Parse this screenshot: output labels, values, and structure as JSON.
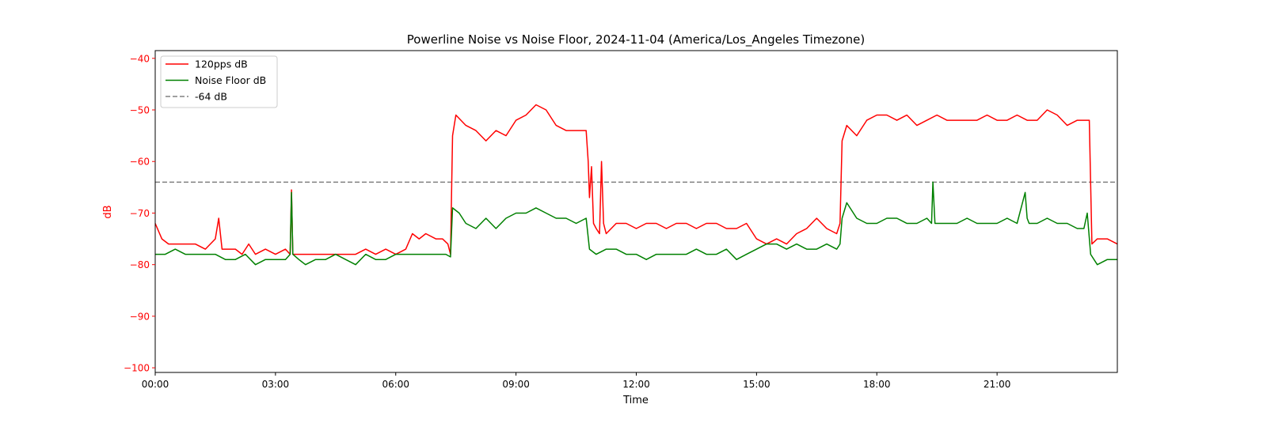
{
  "chart_data": {
    "type": "line",
    "title": "Powerline Noise vs Noise Floor, 2024-11-04 (America/Los_Angeles Timezone)",
    "xlabel": "Time",
    "ylabel": "dB",
    "xlim": [
      "00:00",
      "24:00"
    ],
    "ylim": [
      -100.9,
      -38.5
    ],
    "xticks": [
      "00:00",
      "03:00",
      "06:00",
      "09:00",
      "12:00",
      "15:00",
      "18:00",
      "21:00"
    ],
    "yticks": [
      -100,
      -90,
      -80,
      -70,
      -60,
      -50,
      -40
    ],
    "ytick_color": "#ff0000",
    "ylabel_color": "#ff0000",
    "grid": false,
    "legend_position": "top-left",
    "reference_line": {
      "name": "-64 dB",
      "y": -64,
      "color": "#808080",
      "style": "dashed"
    },
    "series": [
      {
        "name": "120pps dB",
        "color": "#ff0000",
        "x": [
          "00:00",
          "00:10",
          "00:20",
          "00:30",
          "00:45",
          "01:00",
          "01:15",
          "01:30",
          "01:35",
          "01:40",
          "01:50",
          "02:00",
          "02:10",
          "02:20",
          "02:30",
          "02:45",
          "03:00",
          "03:15",
          "03:22",
          "03:24",
          "03:26",
          "03:35",
          "03:45",
          "04:00",
          "04:15",
          "04:30",
          "04:45",
          "05:00",
          "05:15",
          "05:30",
          "05:45",
          "06:00",
          "06:15",
          "06:25",
          "06:35",
          "06:45",
          "07:00",
          "07:10",
          "07:18",
          "07:22",
          "07:25",
          "07:30",
          "07:45",
          "08:00",
          "08:15",
          "08:30",
          "08:45",
          "09:00",
          "09:15",
          "09:30",
          "09:45",
          "10:00",
          "10:15",
          "10:30",
          "10:45",
          "10:48",
          "10:50",
          "10:53",
          "10:56",
          "11:00",
          "11:05",
          "11:08",
          "11:11",
          "11:15",
          "11:30",
          "11:45",
          "12:00",
          "12:15",
          "12:30",
          "12:45",
          "13:00",
          "13:15",
          "13:30",
          "13:45",
          "14:00",
          "14:15",
          "14:30",
          "14:45",
          "15:00",
          "15:15",
          "15:30",
          "15:45",
          "16:00",
          "16:15",
          "16:30",
          "16:45",
          "17:00",
          "17:05",
          "17:08",
          "17:15",
          "17:30",
          "17:45",
          "18:00",
          "18:15",
          "18:30",
          "18:45",
          "19:00",
          "19:15",
          "19:30",
          "19:45",
          "20:00",
          "20:15",
          "20:30",
          "20:45",
          "21:00",
          "21:15",
          "21:30",
          "21:45",
          "22:00",
          "22:15",
          "22:30",
          "22:45",
          "23:00",
          "23:15",
          "23:18",
          "23:22",
          "23:30",
          "23:45",
          "24:00"
        ],
        "y": [
          -72,
          -75,
          -76,
          -76,
          -76,
          -76,
          -77,
          -75,
          -71,
          -77,
          -77,
          -77,
          -78,
          -76,
          -78,
          -77,
          -78,
          -77,
          -78,
          -65.5,
          -78,
          -78,
          -78,
          -78,
          -78,
          -78,
          -78,
          -78,
          -77,
          -78,
          -77,
          -78,
          -77,
          -74,
          -75,
          -74,
          -75,
          -75,
          -76,
          -78,
          -55,
          -51,
          -53,
          -54,
          -56,
          -54,
          -55,
          -52,
          -51,
          -49,
          -50,
          -53,
          -54,
          -54,
          -54,
          -60,
          -67,
          -61,
          -72,
          -73,
          -74,
          -60,
          -72,
          -74,
          -72,
          -72,
          -73,
          -72,
          -72,
          -73,
          -72,
          -72,
          -73,
          -72,
          -72,
          -73,
          -73,
          -72,
          -75,
          -76,
          -75,
          -76,
          -74,
          -73,
          -71,
          -73,
          -74,
          -72,
          -56,
          -53,
          -55,
          -52,
          -51,
          -51,
          -52,
          -51,
          -53,
          -52,
          -51,
          -52,
          -52,
          -52,
          -52,
          -51,
          -52,
          -52,
          -51,
          -52,
          -52,
          -50,
          -51,
          -53,
          -52,
          -52,
          -52,
          -76,
          -75,
          -75,
          -76
        ]
      },
      {
        "name": "Noise Floor dB",
        "color": "#008000",
        "x": [
          "00:00",
          "00:15",
          "00:30",
          "00:45",
          "01:00",
          "01:15",
          "01:30",
          "01:45",
          "02:00",
          "02:15",
          "02:30",
          "02:45",
          "03:00",
          "03:15",
          "03:22",
          "03:24",
          "03:26",
          "03:35",
          "03:45",
          "04:00",
          "04:15",
          "04:30",
          "04:45",
          "05:00",
          "05:15",
          "05:30",
          "05:45",
          "06:00",
          "06:15",
          "06:30",
          "06:45",
          "07:00",
          "07:15",
          "07:22",
          "07:25",
          "07:35",
          "07:45",
          "08:00",
          "08:15",
          "08:30",
          "08:45",
          "09:00",
          "09:15",
          "09:30",
          "09:45",
          "10:00",
          "10:15",
          "10:30",
          "10:45",
          "10:50",
          "11:00",
          "11:15",
          "11:30",
          "11:45",
          "12:00",
          "12:15",
          "12:30",
          "12:45",
          "13:00",
          "13:15",
          "13:30",
          "13:45",
          "14:00",
          "14:15",
          "14:30",
          "14:45",
          "15:00",
          "15:15",
          "15:30",
          "15:45",
          "16:00",
          "16:15",
          "16:30",
          "16:45",
          "17:00",
          "17:05",
          "17:08",
          "17:15",
          "17:30",
          "17:45",
          "18:00",
          "18:15",
          "18:30",
          "18:45",
          "19:00",
          "19:15",
          "19:22",
          "19:24",
          "19:27",
          "19:45",
          "20:00",
          "20:15",
          "20:30",
          "20:45",
          "21:00",
          "21:15",
          "21:30",
          "21:42",
          "21:45",
          "21:48",
          "22:00",
          "22:15",
          "22:30",
          "22:45",
          "23:00",
          "23:10",
          "23:15",
          "23:20",
          "23:30",
          "23:45",
          "24:00"
        ],
        "y": [
          -78,
          -78,
          -77,
          -78,
          -78,
          -78,
          -78,
          -79,
          -79,
          -78,
          -80,
          -79,
          -79,
          -79,
          -78,
          -66,
          -78,
          -79,
          -80,
          -79,
          -79,
          -78,
          -79,
          -80,
          -78,
          -79,
          -79,
          -78,
          -78,
          -78,
          -78,
          -78,
          -78,
          -78.5,
          -69,
          -70,
          -72,
          -73,
          -71,
          -73,
          -71,
          -70,
          -70,
          -69,
          -70,
          -71,
          -71,
          -72,
          -71,
          -77,
          -78,
          -77,
          -77,
          -78,
          -78,
          -79,
          -78,
          -78,
          -78,
          -78,
          -77,
          -78,
          -78,
          -77,
          -79,
          -78,
          -77,
          -76,
          -76,
          -77,
          -76,
          -77,
          -77,
          -76,
          -77,
          -76,
          -71,
          -68,
          -71,
          -72,
          -72,
          -71,
          -71,
          -72,
          -72,
          -71,
          -72,
          -64,
          -72,
          -72,
          -72,
          -71,
          -72,
          -72,
          -72,
          -71,
          -72,
          -66,
          -71,
          -72,
          -72,
          -71,
          -72,
          -72,
          -73,
          -73,
          -70,
          -78,
          -80,
          -79,
          -79
        ]
      }
    ]
  }
}
